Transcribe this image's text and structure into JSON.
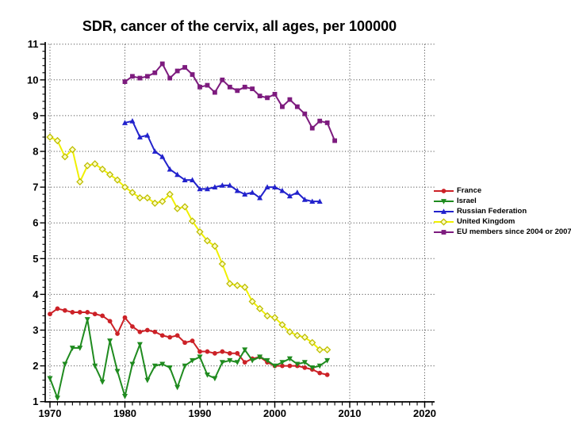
{
  "chart_data": {
    "type": "line",
    "title": "SDR, cancer of the cervix, all ages, per 100000",
    "xlabel": "",
    "ylabel": "",
    "x_base": 1970,
    "xlim": [
      1970,
      2021
    ],
    "ylim": [
      1,
      11
    ],
    "x_ticks": [
      1970,
      1980,
      1990,
      2000,
      2010,
      2020
    ],
    "y_ticks": [
      1,
      2,
      3,
      4,
      5,
      6,
      7,
      8,
      9,
      10,
      11
    ],
    "grid": "dotted",
    "legend_position": "right-outside",
    "series": [
      {
        "name": "France",
        "color": "#CC2127",
        "marker": "circle",
        "start_year": 1970,
        "values": [
          3.45,
          3.6,
          3.55,
          3.5,
          3.5,
          3.5,
          3.45,
          3.4,
          3.25,
          2.9,
          3.35,
          3.1,
          2.95,
          3.0,
          2.95,
          2.85,
          2.8,
          2.85,
          2.65,
          2.7,
          2.4,
          2.4,
          2.35,
          2.4,
          2.35,
          2.35,
          2.1,
          2.2,
          2.25,
          2.1,
          2.0,
          2.0,
          2.0,
          2.0,
          1.95,
          1.9,
          1.8,
          1.75
        ]
      },
      {
        "name": "Israel",
        "color": "#1F8B1F",
        "marker": "triangle-down",
        "start_year": 1970,
        "values": [
          1.65,
          1.1,
          2.05,
          2.5,
          2.5,
          3.3,
          2.0,
          1.55,
          2.7,
          1.85,
          1.15,
          2.05,
          2.6,
          1.6,
          2.0,
          2.05,
          1.95,
          1.4,
          2.0,
          2.15,
          2.25,
          1.75,
          1.65,
          2.1,
          2.15,
          2.1,
          2.45,
          2.15,
          2.25,
          2.15,
          2.0,
          2.1,
          2.2,
          2.05,
          2.1,
          1.95,
          2.0,
          2.15
        ]
      },
      {
        "name": "Russian Federation",
        "color": "#2222CC",
        "marker": "triangle-up",
        "start_year": 1980,
        "values": [
          8.8,
          8.85,
          8.4,
          8.45,
          8.0,
          7.85,
          7.5,
          7.35,
          7.2,
          7.2,
          6.95,
          6.95,
          7.0,
          7.05,
          7.05,
          6.9,
          6.8,
          6.85,
          6.7,
          7.0,
          7.0,
          6.9,
          6.75,
          6.85,
          6.65,
          6.6,
          6.6
        ]
      },
      {
        "name": "United Kingdom",
        "color": "#F0F000",
        "marker": "diamond-open",
        "marker_fill": "#FFFFC8",
        "marker_stroke": "#BDBD00",
        "start_year": 1970,
        "values": [
          8.4,
          8.3,
          7.85,
          8.05,
          7.15,
          7.6,
          7.65,
          7.5,
          7.35,
          7.2,
          7.0,
          6.85,
          6.7,
          6.7,
          6.55,
          6.6,
          6.8,
          6.4,
          6.45,
          6.05,
          5.75,
          5.5,
          5.35,
          4.85,
          4.3,
          4.25,
          4.2,
          3.8,
          3.6,
          3.4,
          3.35,
          3.15,
          2.95,
          2.85,
          2.8,
          2.65,
          2.45,
          2.45
        ]
      },
      {
        "name": "EU members since 2004 or 2007",
        "color": "#7D1B7E",
        "marker": "square",
        "start_year": 1980,
        "values": [
          9.95,
          10.1,
          10.05,
          10.1,
          10.2,
          10.45,
          10.05,
          10.25,
          10.35,
          10.15,
          9.8,
          9.85,
          9.65,
          10.0,
          9.8,
          9.7,
          9.8,
          9.75,
          9.55,
          9.5,
          9.6,
          9.25,
          9.45,
          9.25,
          9.05,
          8.65,
          8.85,
          8.8,
          8.3
        ]
      }
    ]
  }
}
